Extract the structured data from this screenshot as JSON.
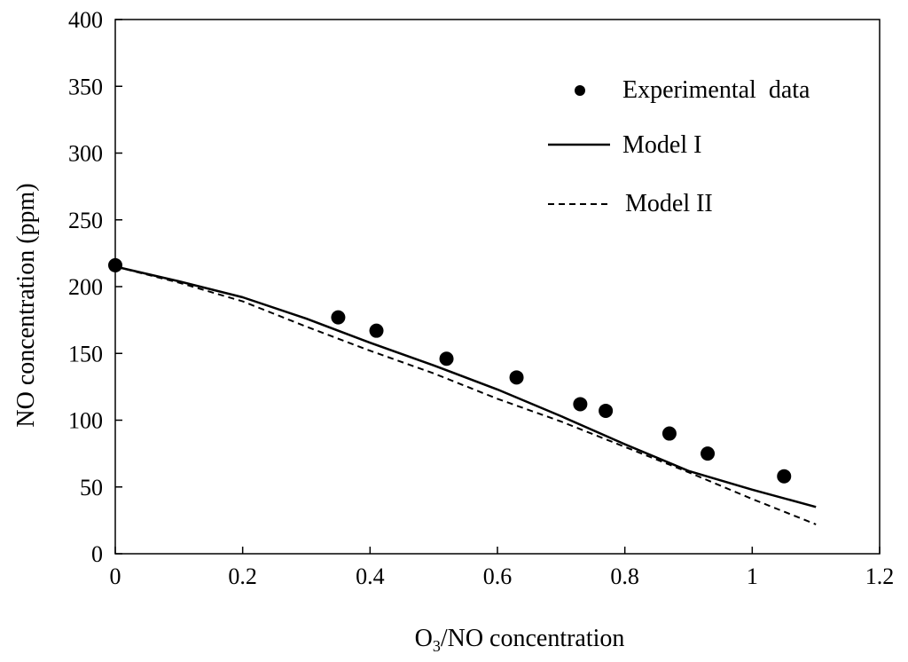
{
  "chart_data": {
    "type": "scatter",
    "xlabel_main": "O",
    "xlabel_sub": "3",
    "xlabel_rest": "/NO concentration",
    "ylabel": "NO concentration (ppm)",
    "xlim": [
      0,
      1.2
    ],
    "ylim": [
      0,
      400
    ],
    "x_ticks": [
      0,
      0.2,
      0.4,
      0.6,
      0.8,
      1,
      1.2
    ],
    "x_tick_labels": [
      "0",
      "0.2",
      "0.4",
      "0.6",
      "0.8",
      "1",
      "1.2"
    ],
    "y_ticks": [
      0,
      50,
      100,
      150,
      200,
      250,
      300,
      350,
      400
    ],
    "y_tick_labels": [
      "0",
      "50",
      "100",
      "150",
      "200",
      "250",
      "300",
      "350",
      "400"
    ],
    "grid": false,
    "legend_position": "top-right",
    "series": [
      {
        "name": "Experimental  data",
        "style": "points",
        "color": "#000000",
        "x": [
          0.0,
          0.35,
          0.41,
          0.52,
          0.63,
          0.73,
          0.77,
          0.87,
          0.93,
          1.05
        ],
        "y": [
          216,
          177,
          167,
          146,
          132,
          112,
          107,
          90,
          75,
          58
        ]
      },
      {
        "name": "Model I",
        "style": "solid",
        "color": "#000000",
        "x": [
          0.0,
          0.1,
          0.2,
          0.3,
          0.4,
          0.5,
          0.6,
          0.7,
          0.8,
          0.9,
          1.0,
          1.1
        ],
        "y": [
          215,
          204,
          192,
          176,
          158,
          141,
          123,
          103,
          82,
          62,
          48,
          35
        ]
      },
      {
        "name": "Model II",
        "style": "dashed",
        "color": "#000000",
        "x": [
          0.0,
          0.1,
          0.2,
          0.3,
          0.4,
          0.5,
          0.6,
          0.7,
          0.8,
          0.9,
          1.0,
          1.1
        ],
        "y": [
          215,
          203,
          189,
          170,
          152,
          135,
          116,
          99,
          80,
          61,
          41,
          22
        ]
      }
    ]
  }
}
